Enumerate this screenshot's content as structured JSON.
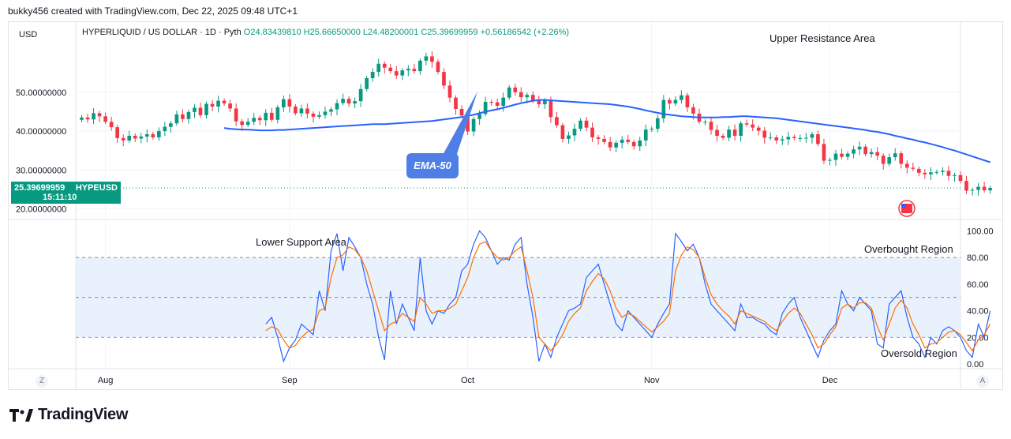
{
  "header": {
    "caption": "bukky456 created with TradingView.com, Dec 22, 2025 09:48 UTC+1"
  },
  "legend": {
    "currency": "USD",
    "symbol_line": "HYPERLIQUID / US DOLLAR · 1D · Pyth",
    "open": "O24.83439810",
    "high": "H25.66650000",
    "low": "L24.48200001",
    "close": "C25.39699959",
    "change": "+0.56186542 (+2.26%)"
  },
  "price_tag": {
    "price": "25.39699959",
    "ticker": "HYPEUSD",
    "countdown": "15:11:10"
  },
  "annotations": {
    "upper_resistance": "Upper Resistance Area",
    "lower_support": "Lower Support Area",
    "ema_callout": "EMA-50",
    "overbought": "Overbought Region",
    "oversold": "Oversold Region"
  },
  "footer": {
    "brand": "TradingView",
    "left_button": "Z",
    "right_button": "A"
  },
  "colors": {
    "up": "#089981",
    "down": "#f23645",
    "ema": "#2962ff",
    "stoch_k": "#2962ff",
    "stoch_d": "#ff6d00",
    "band_fill": "#e3effb"
  },
  "chart_data": [
    {
      "type": "candlestick",
      "title": "HYPERLIQUID / US DOLLAR · 1D · Pyth",
      "y_ticks": [
        "50.00000000",
        "40.00000000",
        "30.00000000",
        "20.00000000"
      ],
      "y_tick_values": [
        50,
        40,
        30,
        20
      ],
      "ylim": [
        17.5,
        68
      ],
      "x_ticks": [
        "Aug",
        "Sep",
        "Oct",
        "Nov",
        "Dec"
      ],
      "x_tick_days": [
        4,
        35,
        65,
        96,
        126
      ],
      "x_range_days": [
        -1,
        148
      ],
      "series": [
        {
          "name": "HYPEUSD",
          "close": [
            43.5,
            43.0,
            44.6,
            43.8,
            42.4,
            41.0,
            38.2,
            37.6,
            38.8,
            38.1,
            38.6,
            39.2,
            38.4,
            40.0,
            41.1,
            42.0,
            44.3,
            43.1,
            44.9,
            46.0,
            44.1,
            47.0,
            46.3,
            47.8,
            47.1,
            45.8,
            42.5,
            41.6,
            42.4,
            43.4,
            42.8,
            44.7,
            42.9,
            46.1,
            48.2,
            46.3,
            44.6,
            45.8,
            44.5,
            43.7,
            44.1,
            45.0,
            45.6,
            47.2,
            48.3,
            47.1,
            47.7,
            50.8,
            53.6,
            55.2,
            57.3,
            56.3,
            55.4,
            54.3,
            55.6,
            56.0,
            55.4,
            58.1,
            59.2,
            57.8,
            55.2,
            51.7,
            48.6,
            45.7,
            44.0,
            39.9,
            43.1,
            44.4,
            47.5,
            47.4,
            46.5,
            48.6,
            51.2,
            50.0,
            48.7,
            49.3,
            47.8,
            46.9,
            47.9,
            43.6,
            41.5,
            38.0,
            38.9,
            40.6,
            42.7,
            40.9,
            38.4,
            38.0,
            37.2,
            35.8,
            37.0,
            37.8,
            37.2,
            36.1,
            37.6,
            40.4,
            40.6,
            43.3,
            48.0,
            47.1,
            48.0,
            49.2,
            46.1,
            44.5,
            42.4,
            42.4,
            40.3,
            38.8,
            38.3,
            40.4,
            38.8,
            42.0,
            41.7,
            40.9,
            40.1,
            38.3,
            38.4,
            37.6,
            37.9,
            38.5,
            38.2,
            38.2,
            38.3,
            39.2,
            36.7,
            32.4,
            32.6,
            34.2,
            33.4,
            34.2,
            35.3,
            36.0,
            34.1,
            34.6,
            33.7,
            31.6,
            33.3,
            34.3,
            31.6,
            30.6,
            30.3,
            29.3,
            28.9,
            29.4,
            29.5,
            29.8,
            28.5,
            28.7,
            27.2,
            24.7,
            24.9,
            25.7,
            24.8,
            25.4
          ]
        },
        {
          "name": "EMA-50",
          "values": [
            40.8,
            40.6,
            40.5,
            40.4,
            40.4,
            40.3,
            40.2,
            40.2,
            40.2,
            40.3,
            40.3,
            40.4,
            40.5,
            40.6,
            40.7,
            40.8,
            40.9,
            41.0,
            41.1,
            41.2,
            41.3,
            41.4,
            41.5,
            41.6,
            41.7,
            41.8,
            41.8,
            41.8,
            41.9,
            42.0,
            42.1,
            42.2,
            42.3,
            42.4,
            42.5,
            42.6,
            42.8,
            43.0,
            43.2,
            43.4,
            43.6,
            43.9,
            44.2,
            44.6,
            45.0,
            45.3,
            45.6,
            46.0,
            46.4,
            46.8,
            47.2,
            47.5,
            47.8,
            48.0,
            48.0,
            47.9,
            47.8,
            47.7,
            47.6,
            47.5,
            47.4,
            47.3,
            47.2,
            47.1,
            47.0,
            46.9,
            46.7,
            46.5,
            46.3,
            46.0,
            45.7,
            45.3,
            45.0,
            44.7,
            44.4,
            44.2,
            44.0,
            43.8,
            43.7,
            43.6,
            43.5,
            43.5,
            43.5,
            43.5,
            43.6,
            43.6,
            43.7,
            43.8,
            43.8,
            43.7,
            43.6,
            43.5,
            43.4,
            43.3,
            43.1,
            42.9,
            42.7,
            42.5,
            42.3,
            42.1,
            41.9,
            41.7,
            41.5,
            41.3,
            41.1,
            40.9,
            40.7,
            40.5,
            40.3,
            40.0,
            39.8,
            39.5,
            39.2,
            38.8,
            38.5,
            38.1,
            37.8,
            37.4,
            37.1,
            36.7,
            36.3,
            35.9,
            35.4,
            35.0,
            34.5,
            34.0,
            33.5,
            33.0,
            32.5,
            32.0
          ]
        }
      ]
    },
    {
      "type": "line",
      "title": "",
      "y_ticks": [
        "100.00",
        "80.00",
        "60.00",
        "40.00",
        "20.00",
        "0.00"
      ],
      "y_tick_values": [
        100,
        80,
        60,
        40,
        20,
        0
      ],
      "ylim": [
        -3,
        108
      ],
      "bands": [
        20,
        50,
        80
      ],
      "series": [
        {
          "name": "%K",
          "values": [
            30,
            35,
            20,
            2,
            12,
            18,
            30,
            26,
            22,
            55,
            40,
            85,
            98,
            70,
            95,
            88,
            80,
            60,
            45,
            20,
            3,
            55,
            30,
            45,
            35,
            25,
            80,
            40,
            30,
            40,
            38,
            45,
            50,
            70,
            75,
            90,
            100,
            95,
            85,
            75,
            80,
            78,
            90,
            95,
            60,
            35,
            2,
            15,
            5,
            20,
            30,
            40,
            42,
            45,
            65,
            70,
            75,
            60,
            45,
            30,
            25,
            40,
            35,
            30,
            25,
            20,
            30,
            38,
            45,
            98,
            92,
            85,
            90,
            80,
            60,
            45,
            40,
            35,
            30,
            25,
            45,
            35,
            35,
            32,
            30,
            25,
            22,
            38,
            45,
            50,
            35,
            25,
            15,
            5,
            18,
            25,
            30,
            55,
            45,
            40,
            50,
            45,
            40,
            15,
            12,
            45,
            50,
            55,
            35,
            20,
            15,
            5,
            20,
            15,
            25,
            28,
            25,
            20,
            10,
            5,
            30,
            20,
            40
          ]
        },
        {
          "name": "%D",
          "values": [
            25,
            28,
            26,
            18,
            12,
            14,
            20,
            24,
            26,
            40,
            42,
            65,
            80,
            82,
            88,
            86,
            80,
            70,
            55,
            40,
            25,
            30,
            32,
            38,
            35,
            32,
            50,
            45,
            38,
            40,
            40,
            42,
            45,
            55,
            65,
            80,
            90,
            92,
            85,
            80,
            78,
            80,
            85,
            88,
            70,
            50,
            20,
            15,
            10,
            15,
            22,
            32,
            38,
            42,
            55,
            62,
            68,
            64,
            55,
            42,
            35,
            38,
            36,
            32,
            28,
            24,
            28,
            32,
            38,
            70,
            82,
            88,
            86,
            80,
            65,
            52,
            45,
            40,
            36,
            30,
            40,
            38,
            36,
            34,
            32,
            28,
            25,
            32,
            38,
            42,
            38,
            30,
            22,
            12,
            15,
            22,
            28,
            42,
            45,
            42,
            46,
            46,
            42,
            28,
            18,
            30,
            42,
            48,
            42,
            30,
            22,
            12,
            15,
            16,
            20,
            24,
            25,
            22,
            16,
            10,
            18,
            22,
            30
          ]
        }
      ]
    }
  ]
}
